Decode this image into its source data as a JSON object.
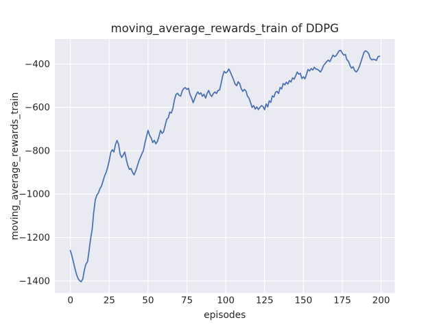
{
  "chart_data": {
    "type": "line",
    "title": "moving_average_rewards_train of DDPG",
    "xlabel": "episodes",
    "ylabel": "moving_average_rewards_train",
    "grid": true,
    "legend": false,
    "xlim": [
      -10.0,
      208.8
    ],
    "ylim": [
      -1456,
      -285
    ],
    "x_ticks": [
      0,
      25,
      50,
      75,
      100,
      125,
      150,
      175,
      200
    ],
    "x_tick_labels": [
      "0",
      "25",
      "50",
      "75",
      "100",
      "125",
      "150",
      "175",
      "200"
    ],
    "y_ticks": [
      -400,
      -600,
      -800,
      -1000,
      -1200,
      -1400
    ],
    "y_tick_labels": [
      "−400",
      "−600",
      "−800",
      "−1000",
      "−1200",
      "−1400"
    ],
    "series": [
      {
        "name": "moving_average_rewards_train",
        "x_start": 0,
        "x_step": 1,
        "values": [
          -1260,
          -1285,
          -1315,
          -1345,
          -1372,
          -1390,
          -1400,
          -1404,
          -1390,
          -1350,
          -1322,
          -1312,
          -1262,
          -1205,
          -1162,
          -1085,
          -1027,
          -1005,
          -995,
          -975,
          -963,
          -940,
          -916,
          -900,
          -876,
          -845,
          -807,
          -795,
          -806,
          -772,
          -753,
          -769,
          -815,
          -831,
          -820,
          -806,
          -841,
          -868,
          -886,
          -882,
          -899,
          -911,
          -893,
          -873,
          -849,
          -831,
          -814,
          -799,
          -764,
          -734,
          -706,
          -729,
          -741,
          -762,
          -752,
          -768,
          -757,
          -735,
          -706,
          -720,
          -712,
          -683,
          -655,
          -648,
          -622,
          -626,
          -604,
          -564,
          -540,
          -535,
          -545,
          -548,
          -524,
          -512,
          -509,
          -517,
          -512,
          -540,
          -556,
          -578,
          -560,
          -541,
          -529,
          -539,
          -533,
          -549,
          -539,
          -557,
          -536,
          -522,
          -541,
          -550,
          -536,
          -529,
          -536,
          -522,
          -520,
          -490,
          -455,
          -434,
          -441,
          -436,
          -423,
          -438,
          -455,
          -472,
          -492,
          -500,
          -482,
          -491,
          -514,
          -526,
          -517,
          -524,
          -548,
          -558,
          -578,
          -600,
          -592,
          -608,
          -598,
          -610,
          -600,
          -592,
          -596,
          -611,
          -584,
          -598,
          -570,
          -577,
          -547,
          -552,
          -531,
          -526,
          -536,
          -508,
          -515,
          -490,
          -496,
          -484,
          -492,
          -477,
          -483,
          -464,
          -470,
          -455,
          -437,
          -447,
          -443,
          -467,
          -459,
          -468,
          -447,
          -425,
          -432,
          -421,
          -428,
          -415,
          -423,
          -425,
          -430,
          -437,
          -424,
          -406,
          -398,
          -389,
          -382,
          -389,
          -375,
          -359,
          -366,
          -362,
          -350,
          -339,
          -337,
          -350,
          -359,
          -356,
          -380,
          -387,
          -407,
          -419,
          -413,
          -430,
          -437,
          -428,
          -412,
          -391,
          -368,
          -346,
          -339,
          -343,
          -352,
          -373,
          -381,
          -378,
          -380,
          -383,
          -367,
          -364
        ]
      }
    ]
  },
  "colors": {
    "figure_background": "#ffffff",
    "plot_background": "#EAEAF2",
    "grid": "#ffffff",
    "line": "#4C72B0",
    "text": "#262626"
  }
}
